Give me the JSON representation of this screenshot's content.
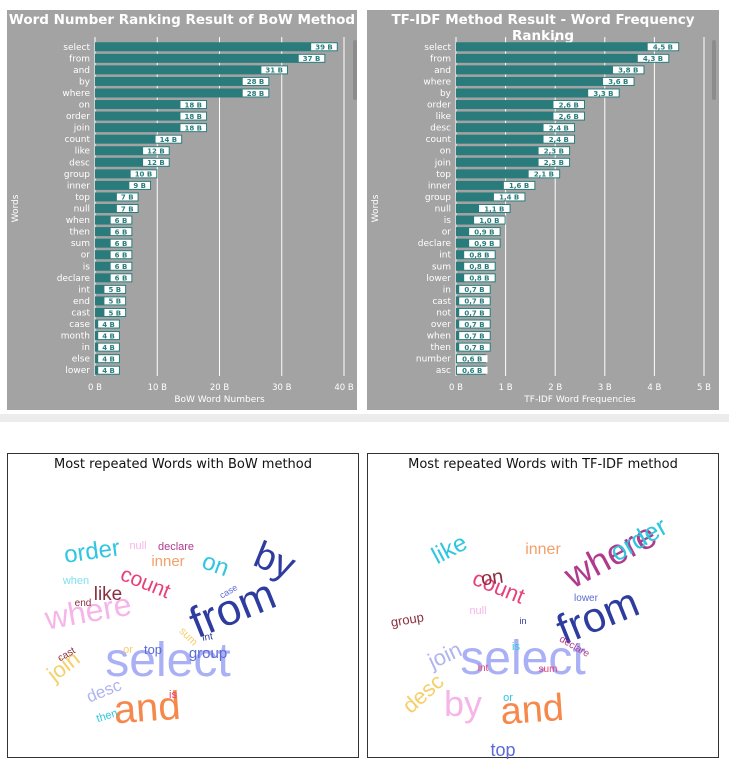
{
  "chart_data": [
    {
      "type": "bar",
      "orientation": "horizontal",
      "title": "Word Number Ranking Result of BoW Method",
      "xlabel": "BoW Word Numbers",
      "ylabel": "Words",
      "xlim": [
        0,
        40
      ],
      "xticks": [
        "0 B",
        "10 B",
        "20 B",
        "30 B",
        "40 B"
      ],
      "unit_suffix": " B",
      "grid": true,
      "bar_color": "#2a7c7c",
      "categories": [
        "select",
        "from",
        "and",
        "by",
        "where",
        "on",
        "order",
        "join",
        "count",
        "like",
        "desc",
        "group",
        "inner",
        "top",
        "null",
        "when",
        "then",
        "sum",
        "or",
        "is",
        "declare",
        "int",
        "end",
        "cast",
        "case",
        "month",
        "in",
        "else",
        "lower"
      ],
      "values": [
        39,
        37,
        31,
        28,
        28,
        18,
        18,
        18,
        14,
        12,
        12,
        10,
        9,
        7,
        7,
        6,
        6,
        6,
        6,
        6,
        6,
        5,
        5,
        5,
        4,
        4,
        4,
        4,
        4
      ],
      "data_labels": [
        "39 B",
        "37 B",
        "31 B",
        "28 B",
        "28 B",
        "18 B",
        "18 B",
        "18 B",
        "14 B",
        "12 B",
        "12 B",
        "10 B",
        "9 B",
        "7 B",
        "7 B",
        "6 B",
        "6 B",
        "6 B",
        "6 B",
        "6 B",
        "6 B",
        "5 B",
        "5 B",
        "5 B",
        "4 B",
        "4 B",
        "4 B",
        "4 B",
        "4 B"
      ]
    },
    {
      "type": "bar",
      "orientation": "horizontal",
      "title": "TF-IDF Method Result - Word Frequency Ranking",
      "xlabel": "TF-IDF Word Frequencies",
      "ylabel": "Words",
      "xlim": [
        0,
        5
      ],
      "xticks": [
        "0 B",
        "1 B",
        "2 B",
        "3 B",
        "4 B",
        "5 B"
      ],
      "unit_suffix": " B",
      "grid": true,
      "bar_color": "#2a7c7c",
      "categories": [
        "select",
        "from",
        "and",
        "where",
        "by",
        "order",
        "like",
        "desc",
        "count",
        "on",
        "join",
        "top",
        "inner",
        "group",
        "null",
        "is",
        "or",
        "declare",
        "int",
        "sum",
        "lower",
        "in",
        "cast",
        "not",
        "over",
        "when",
        "then",
        "number",
        "asc"
      ],
      "values": [
        4.5,
        4.3,
        3.8,
        3.6,
        3.3,
        2.6,
        2.6,
        2.4,
        2.4,
        2.3,
        2.3,
        2.1,
        1.6,
        1.4,
        1.1,
        1.0,
        0.9,
        0.9,
        0.8,
        0.8,
        0.8,
        0.7,
        0.7,
        0.7,
        0.7,
        0.7,
        0.7,
        0.6,
        0.6
      ],
      "data_labels": [
        "4,5 B",
        "4,3 B",
        "3,8 B",
        "3,6 B",
        "3,3 B",
        "2,6 B",
        "2,6 B",
        "2,4 B",
        "2,4 B",
        "2,3 B",
        "2,3 B",
        "2,1 B",
        "1,6 B",
        "1,4 B",
        "1,1 B",
        "1,0 B",
        "0,9 B",
        "0,9 B",
        "0,8 B",
        "0,8 B",
        "0,8 B",
        "0,7 B",
        "0,7 B",
        "0,7 B",
        "0,7 B",
        "0,7 B",
        "0,7 B",
        "0,6 B",
        "0,6 B"
      ]
    }
  ],
  "clouds": [
    {
      "title": "Most repeated Words with BoW method",
      "words": [
        {
          "text": "select",
          "color": "#aab0f5",
          "weight": 39
        },
        {
          "text": "from",
          "color": "#2d3c9e",
          "weight": 37
        },
        {
          "text": "and",
          "color": "#f5884a",
          "weight": 31
        },
        {
          "text": "by",
          "color": "#2d3c9e",
          "weight": 28
        },
        {
          "text": "where",
          "color": "#f6b5e8",
          "weight": 28
        },
        {
          "text": "on",
          "color": "#2fc6e0",
          "weight": 18
        },
        {
          "text": "order",
          "color": "#2fc6e0",
          "weight": 18
        },
        {
          "text": "join",
          "color": "#f5cf6a",
          "weight": 18
        },
        {
          "text": "count",
          "color": "#e8407a",
          "weight": 14
        },
        {
          "text": "like",
          "color": "#8a2e3d",
          "weight": 12
        },
        {
          "text": "desc",
          "color": "#b0b4f0",
          "weight": 12
        },
        {
          "text": "group",
          "color": "#5b6bd6",
          "weight": 10
        },
        {
          "text": "inner",
          "color": "#f4a06a",
          "weight": 9
        },
        {
          "text": "top",
          "color": "#5b6bd6",
          "weight": 7
        },
        {
          "text": "null",
          "color": "#f6b5e8",
          "weight": 7
        },
        {
          "text": "when",
          "color": "#7fe0ee",
          "weight": 6
        },
        {
          "text": "then",
          "color": "#2fc6e0",
          "weight": 6
        },
        {
          "text": "sum",
          "color": "#f5cf6a",
          "weight": 6
        },
        {
          "text": "or",
          "color": "#f5cf6a",
          "weight": 6
        },
        {
          "text": "is",
          "color": "#e8407a",
          "weight": 6
        },
        {
          "text": "declare",
          "color": "#b03a8e",
          "weight": 6
        },
        {
          "text": "int",
          "color": "#2d3c9e",
          "weight": 5
        },
        {
          "text": "end",
          "color": "#8a2e3d",
          "weight": 5
        },
        {
          "text": "cast",
          "color": "#8a2e3d",
          "weight": 5
        },
        {
          "text": "case",
          "color": "#5b6bd6",
          "weight": 4
        }
      ]
    },
    {
      "title": "Most repeated Words with TF-IDF method",
      "words": [
        {
          "text": "select",
          "color": "#aab0f5",
          "weight": 4.5
        },
        {
          "text": "from",
          "color": "#2d3c9e",
          "weight": 4.3
        },
        {
          "text": "and",
          "color": "#f5884a",
          "weight": 3.8
        },
        {
          "text": "where",
          "color": "#b03a8e",
          "weight": 3.6
        },
        {
          "text": "by",
          "color": "#f6b5e8",
          "weight": 3.3
        },
        {
          "text": "order",
          "color": "#2fc6e0",
          "weight": 2.6
        },
        {
          "text": "like",
          "color": "#2fc6e0",
          "weight": 2.6
        },
        {
          "text": "desc",
          "color": "#f5cf6a",
          "weight": 2.4
        },
        {
          "text": "count",
          "color": "#e8407a",
          "weight": 2.4
        },
        {
          "text": "on",
          "color": "#8a2e3d",
          "weight": 2.3
        },
        {
          "text": "join",
          "color": "#b0b4f0",
          "weight": 2.3
        },
        {
          "text": "top",
          "color": "#5b6bd6",
          "weight": 2.1
        },
        {
          "text": "inner",
          "color": "#f4a06a",
          "weight": 1.6
        },
        {
          "text": "group",
          "color": "#8a2e3d",
          "weight": 1.4
        },
        {
          "text": "null",
          "color": "#f6b5e8",
          "weight": 1.1
        },
        {
          "text": "is",
          "color": "#2fc6e0",
          "weight": 1.0
        },
        {
          "text": "or",
          "color": "#2fc6e0",
          "weight": 0.9
        },
        {
          "text": "declare",
          "color": "#b03a8e",
          "weight": 0.9
        },
        {
          "text": "int",
          "color": "#e8407a",
          "weight": 0.8
        },
        {
          "text": "sum",
          "color": "#e8407a",
          "weight": 0.8
        },
        {
          "text": "lower",
          "color": "#5b6bd6",
          "weight": 0.8
        },
        {
          "text": "in",
          "color": "#2d3c9e",
          "weight": 0.7
        }
      ]
    }
  ]
}
